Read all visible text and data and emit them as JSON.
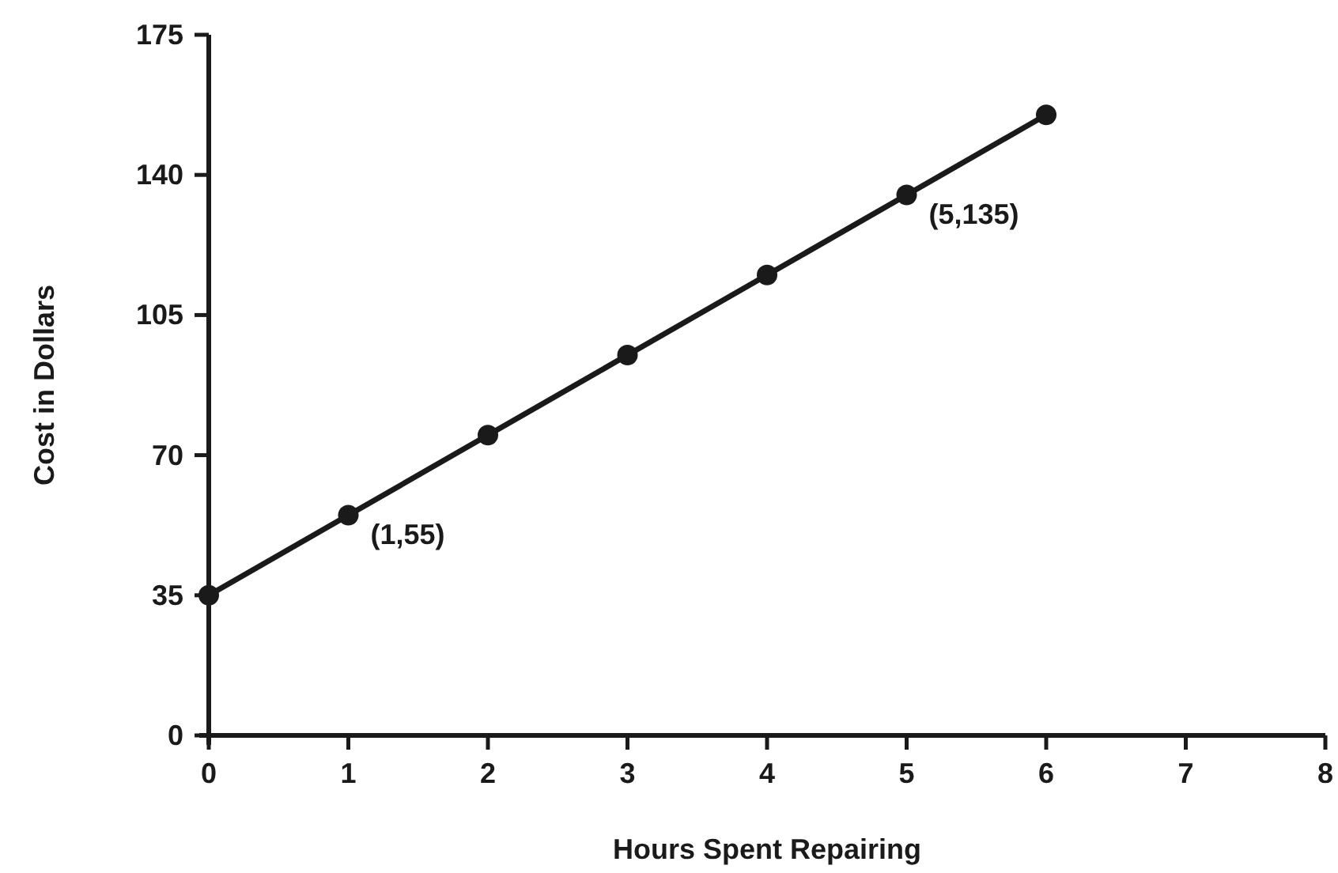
{
  "chart_data": {
    "type": "line",
    "xlabel": "Hours Spent Repairing",
    "ylabel": "Cost in Dollars",
    "x": [
      0,
      1,
      2,
      3,
      4,
      5,
      6
    ],
    "series": [
      {
        "color": "#1a1a1a",
        "values": [
          35,
          55,
          75,
          95,
          115,
          135,
          155
        ]
      }
    ],
    "xlim": [
      0,
      8
    ],
    "xticks": [
      0,
      1,
      2,
      3,
      4,
      5,
      6,
      7,
      8
    ],
    "ylim": [
      0,
      175
    ],
    "yticks": [
      0,
      35,
      70,
      105,
      140,
      175
    ],
    "marker": "circle",
    "line_style": "solid",
    "grid": false,
    "annotations": [
      {
        "text": "(1,55)",
        "x": 1,
        "y": 55
      },
      {
        "text": "(5,135)",
        "x": 5,
        "y": 135
      }
    ]
  }
}
